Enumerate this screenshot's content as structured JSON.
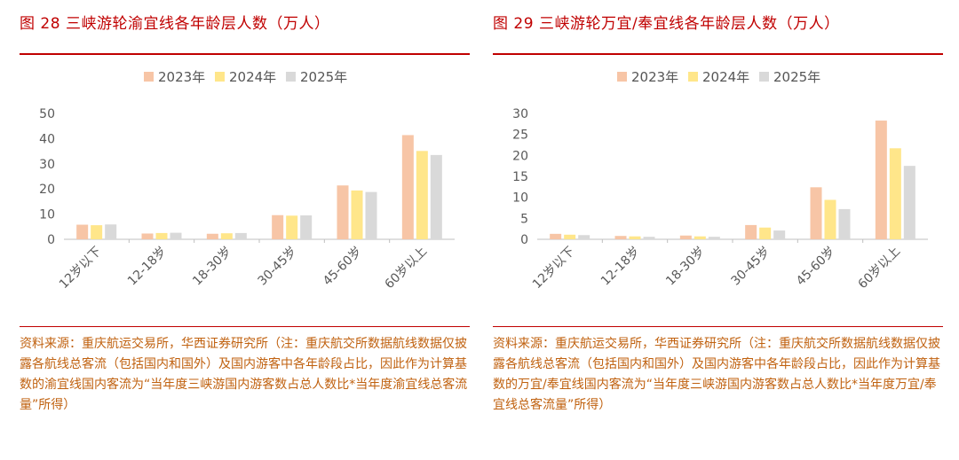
{
  "colors": {
    "accent": "#c00000",
    "source_text": "#c0610f",
    "series": [
      "#f7c5a6",
      "#ffe68a",
      "#d9d9d9"
    ],
    "axis": "#bfbfbf"
  },
  "charts": [
    {
      "title": "图 28  三峡游轮渝宜线各年龄层人数（万人）",
      "source": "资料来源：重庆航运交易所，华西证券研究所（注：重庆航交所数据航线数据仅披露各航线总客流（包括国内和国外）及国内游客中各年龄段占比，因此作为计算基数的渝宜线国内客流为“当年度三峡游国内游客数占总人数比*当年度渝宜线总客流量”所得）"
    },
    {
      "title": "图 29  三峡游轮万宜/奉宜线各年龄层人数（万人）",
      "source": "资料来源：重庆航运交易所，华西证券研究所（注：重庆航交所数据航线数据仅披露各航线总客流（包括国内和国外）及国内游客中各年龄段占比，因此作为计算基数的万宜/奉宜线国内客流为“当年度三峡游国内游客数占总人数比*当年度万宜/奉宜线总客流量”所得）"
    }
  ],
  "chart_data": [
    {
      "type": "bar",
      "title": "三峡游轮渝宜线各年龄层人数（万人）",
      "categories": [
        "12岁以下",
        "12-18岁",
        "18-30岁",
        "30-45岁",
        "45-60岁",
        "60岁以上"
      ],
      "series": [
        {
          "name": "2023年",
          "values": [
            5.8,
            2.3,
            2.2,
            9.6,
            21.4,
            41.4
          ]
        },
        {
          "name": "2024年",
          "values": [
            5.6,
            2.5,
            2.4,
            9.4,
            19.4,
            35.1
          ]
        },
        {
          "name": "2025年",
          "values": [
            5.9,
            2.6,
            2.5,
            9.5,
            18.8,
            33.5
          ]
        }
      ],
      "yticks": [
        0,
        10,
        20,
        30,
        40,
        50
      ],
      "ylim": [
        0,
        50
      ],
      "xlabel": "",
      "ylabel": "",
      "legend": "top-center",
      "grid": false
    },
    {
      "type": "bar",
      "title": "三峡游轮万宜/奉宜线各年龄层人数（万人）",
      "categories": [
        "12岁以下",
        "12-18岁",
        "18-30岁",
        "30-45岁",
        "45-60岁",
        "60岁以上"
      ],
      "series": [
        {
          "name": "2023年",
          "values": [
            1.3,
            0.8,
            0.9,
            3.4,
            12.4,
            28.3
          ]
        },
        {
          "name": "2024年",
          "values": [
            1.1,
            0.7,
            0.7,
            2.8,
            9.4,
            21.7
          ]
        },
        {
          "name": "2025年",
          "values": [
            1.0,
            0.6,
            0.6,
            2.1,
            7.2,
            17.5
          ]
        }
      ],
      "yticks": [
        0,
        5,
        10,
        15,
        20,
        25,
        30
      ],
      "ylim": [
        0,
        30
      ],
      "xlabel": "",
      "ylabel": "",
      "legend": "top-center",
      "grid": false
    }
  ]
}
